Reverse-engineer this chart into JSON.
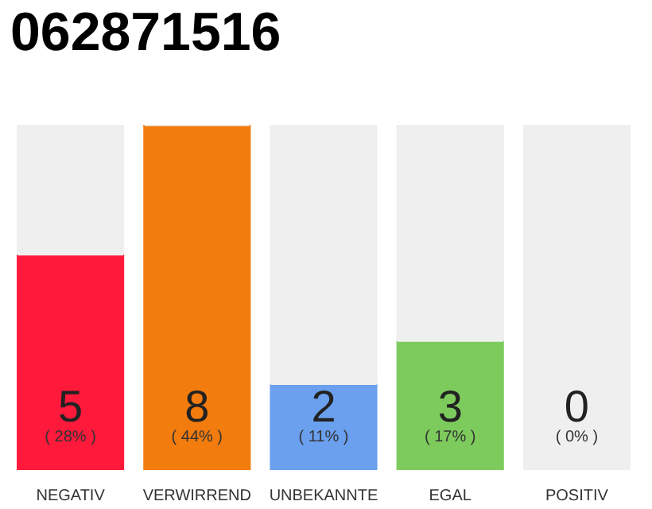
{
  "chart_data": {
    "type": "bar",
    "title": "062871516",
    "categories": [
      "NEGATIV",
      "VERWIRREND",
      "UNBEKANNTE",
      "EGAL",
      "POSITIV"
    ],
    "stacked": true,
    "ylim": [
      0,
      8
    ],
    "tick_labels": "x",
    "grid": false,
    "series": [
      {
        "colors": [
          "#ff1a3c",
          "#f27c0e",
          "#6aa0ee",
          "#7dcb5d",
          "#2eaa4a"
        ],
        "values": [
          5,
          8,
          2,
          3,
          0
        ],
        "value_labels": [
          "5\n( 28% )",
          "8\n( 44% )",
          "2\n( 11% )",
          "3\n( 17% )",
          "0\n( 0% )"
        ]
      },
      {
        "color": "#efefef",
        "values": [
          3,
          0,
          6,
          5,
          8
        ]
      }
    ]
  }
}
